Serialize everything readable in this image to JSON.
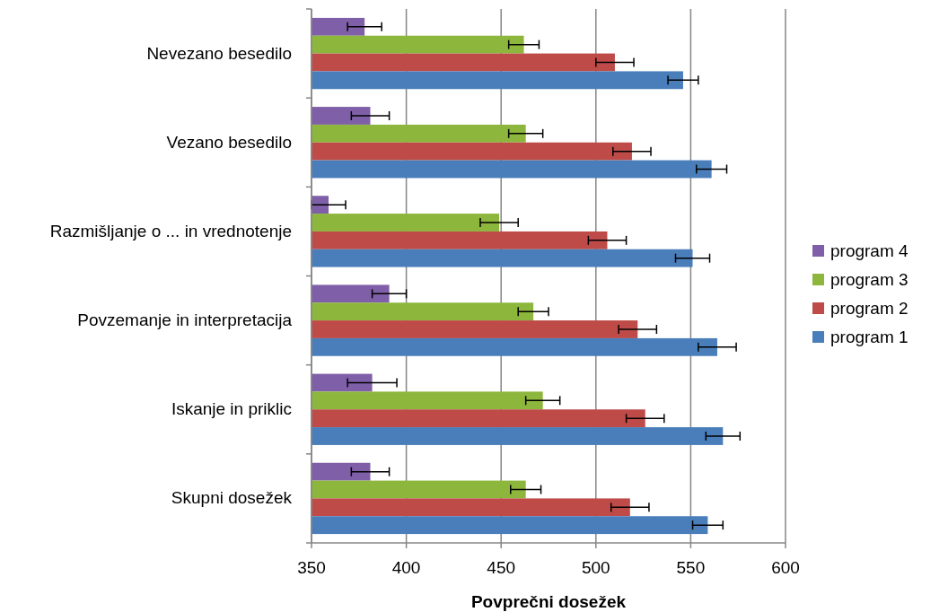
{
  "chart_data": {
    "type": "bar",
    "orientation": "horizontal",
    "xlabel": "Povprečni dosežek",
    "categories": [
      "Nevezano besedilo",
      "Vezano besedilo",
      "Razmišljanje o ... in vrednotenje",
      "Povzemanje in interpretacija",
      "Iskanje in priklic",
      "Skupni dosežek"
    ],
    "series": [
      {
        "name": "program 4",
        "color": "#7f60a8",
        "values": [
          378,
          381,
          359,
          391,
          382,
          381
        ],
        "errors": [
          9,
          10,
          9,
          9,
          13,
          10
        ]
      },
      {
        "name": "program 3",
        "color": "#8db63c",
        "values": [
          462,
          463,
          449,
          467,
          472,
          463
        ],
        "errors": [
          8,
          9,
          10,
          8,
          9,
          8
        ]
      },
      {
        "name": "program 2",
        "color": "#be4b48",
        "values": [
          510,
          519,
          506,
          522,
          526,
          518
        ],
        "errors": [
          10,
          10,
          10,
          10,
          10,
          10
        ]
      },
      {
        "name": "program 1",
        "color": "#4a7ebb",
        "values": [
          546,
          561,
          551,
          564,
          567,
          559
        ],
        "errors": [
          8,
          8,
          9,
          10,
          9,
          8
        ]
      }
    ],
    "xlim": [
      350,
      600
    ],
    "xticks": [
      350,
      400,
      450,
      500,
      550,
      600
    ],
    "grid": "x",
    "legend": "right"
  }
}
